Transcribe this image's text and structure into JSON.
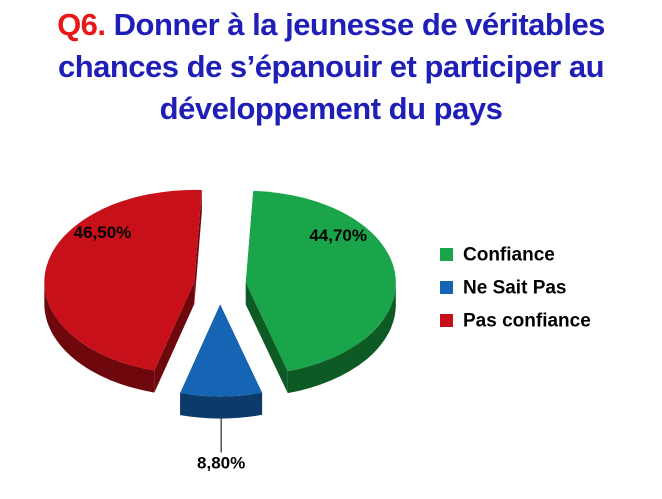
{
  "title": {
    "prefix": "Q6.",
    "line1": " Donner à la jeunesse de véritables",
    "line2": "chances de s’épanouir et participer au",
    "line3": "développement du pays"
  },
  "colors": {
    "title": "#1f1fb8",
    "prefix": "#e81818"
  },
  "chart_data": {
    "type": "pie",
    "style": "3d-exploded",
    "title": "Q6. Donner à la jeunesse de véritables chances de s’épanouir et participer au développement du pays",
    "legend_position": "right",
    "slices": [
      {
        "label": "Confiance",
        "value": 44.7,
        "value_label": "44,70%",
        "color": "#1aa54a",
        "side": "#0d5a24"
      },
      {
        "label": "Ne Sait Pas",
        "value": 8.8,
        "value_label": "8,80%",
        "color": "#1665b4",
        "side": "#0c3a6a"
      },
      {
        "label": "Pas confiance",
        "value": 46.5,
        "value_label": "46,50%",
        "color": "#c8101a",
        "side": "#6e080d"
      }
    ]
  }
}
